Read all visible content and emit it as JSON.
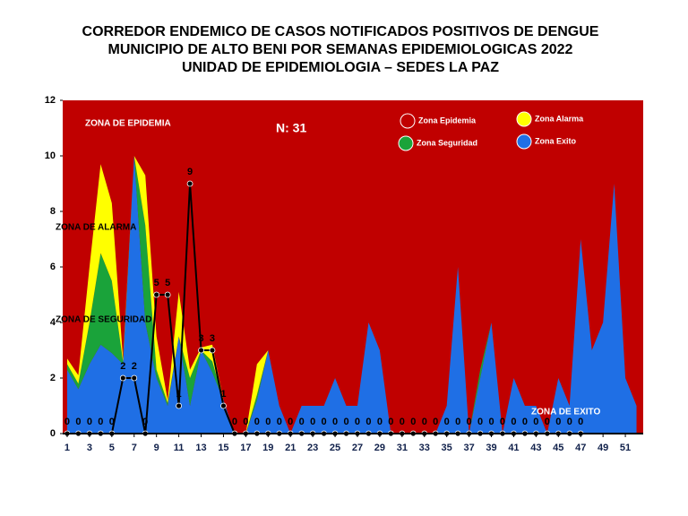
{
  "chart_data": {
    "type": "area",
    "title": [
      "CORREDOR ENDEMICO DE CASOS NOTIFICADOS POSITIVOS DE DENGUE",
      "MUNICIPIO DE ALTO BENI POR SEMANAS EPIDEMIOLOGICAS 2022",
      "UNIDAD DE EPIDEMIOLOGIA – SEDES LA PAZ"
    ],
    "annotations": [
      "ZONA DE EPIDEMIA",
      "ZONA DE ALARMA",
      "ZONA DE  SEGURIDAD",
      "ZONA DE  EXITO",
      "N: 31"
    ],
    "x": [
      1,
      2,
      3,
      4,
      5,
      6,
      7,
      8,
      9,
      10,
      11,
      12,
      13,
      14,
      15,
      16,
      17,
      18,
      19,
      20,
      21,
      22,
      23,
      24,
      25,
      26,
      27,
      28,
      29,
      30,
      31,
      32,
      33,
      34,
      35,
      36,
      37,
      38,
      39,
      40,
      41,
      42,
      43,
      44,
      45,
      46,
      47,
      48,
      49,
      50,
      51,
      52
    ],
    "xlim": [
      0.6,
      52.6
    ],
    "xticks": [
      1,
      3,
      5,
      7,
      9,
      11,
      13,
      15,
      17,
      19,
      21,
      23,
      25,
      27,
      29,
      31,
      33,
      35,
      37,
      39,
      41,
      43,
      45,
      47,
      49,
      51
    ],
    "ylim": [
      0,
      12
    ],
    "yticks": [
      0,
      2,
      4,
      6,
      8,
      10,
      12
    ],
    "background": {
      "name": "Zona Epidemia",
      "color": "#c00000"
    },
    "series": [
      {
        "name": "Zona Exito",
        "color": "#1f6fe5",
        "values": [
          2.3,
          1.6,
          2.5,
          3.2,
          2.9,
          2.5,
          10,
          4,
          2,
          1,
          3.5,
          1,
          3,
          2.2,
          1.2,
          0,
          0,
          1.2,
          3,
          1,
          0,
          1,
          1,
          1,
          2,
          1,
          1,
          4,
          3,
          0,
          0,
          0,
          0,
          0,
          1,
          6,
          0,
          2,
          4,
          0,
          2,
          1,
          1,
          0,
          2,
          1,
          7,
          3,
          4,
          9,
          2,
          1
        ]
      },
      {
        "name": "Zona Seguridad",
        "color": "#1aa33a",
        "values": [
          0.2,
          0.2,
          1.5,
          3.3,
          2.6,
          0.1,
          0,
          3.5,
          0.3,
          0.1,
          0,
          1,
          0,
          0.4,
          0,
          0,
          0,
          0.2,
          0,
          0,
          0,
          0,
          0,
          0,
          0,
          0,
          0,
          0,
          0,
          0,
          0,
          0,
          0,
          0,
          0,
          0,
          0,
          0.3,
          0,
          0,
          0,
          0,
          0,
          0,
          0,
          0,
          0,
          0,
          0,
          0,
          0,
          0
        ]
      },
      {
        "name": "Zona Alarma",
        "color": "#ffff00",
        "values": [
          0.2,
          0.3,
          2,
          3.2,
          2.8,
          0.1,
          0,
          1.8,
          1.2,
          0.1,
          1.6,
          0.3,
          0.1,
          0.6,
          0,
          0,
          0,
          1.1,
          0,
          0,
          0,
          0,
          0,
          0,
          0,
          0,
          0,
          0,
          0,
          0,
          0,
          0,
          0,
          0,
          0,
          0,
          0,
          0,
          0,
          0,
          0,
          0,
          0,
          0,
          0,
          0,
          0,
          0,
          0,
          0,
          0,
          0
        ]
      }
    ],
    "line": {
      "color": "#000000",
      "values": [
        0,
        0,
        0,
        0,
        0,
        2,
        2,
        0,
        5,
        5,
        1,
        9,
        3,
        3,
        1,
        0,
        0,
        0,
        0,
        0,
        0,
        0,
        0,
        0,
        0,
        0,
        0,
        0,
        0,
        0,
        0,
        0,
        0,
        0,
        0,
        0,
        0,
        0,
        0,
        0,
        0,
        0,
        0,
        0,
        0,
        0,
        0
      ]
    }
  }
}
